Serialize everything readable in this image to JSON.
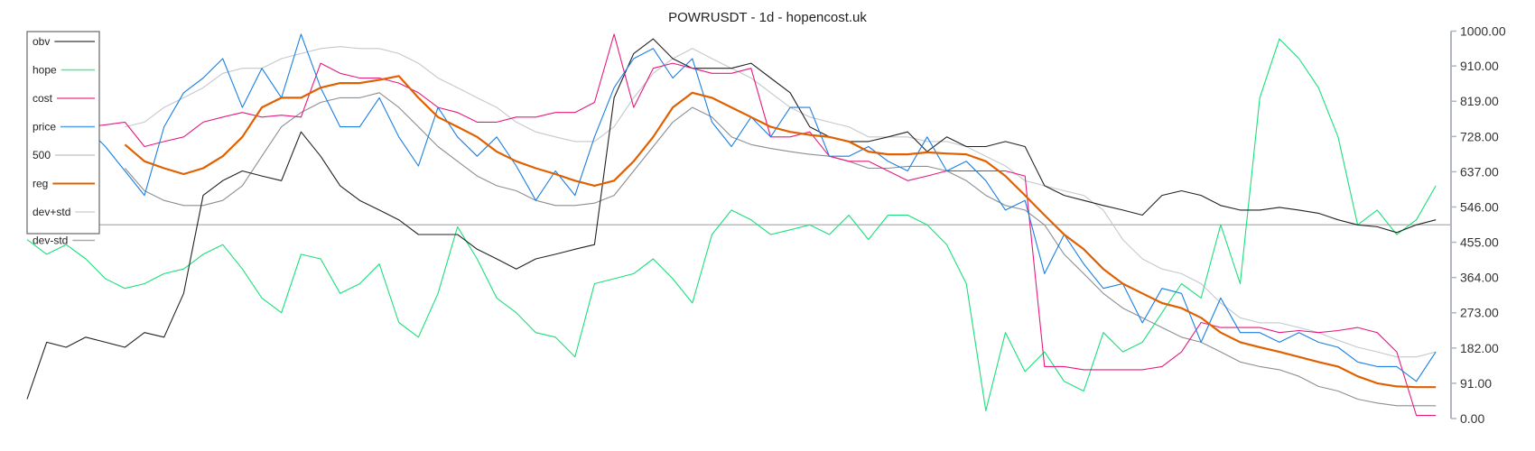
{
  "chart_data": {
    "type": "line",
    "title": "POWRUSDT - 1d - hopencost.uk",
    "ylim": [
      0,
      1000
    ],
    "y_ticks": [
      "0.00",
      "91.00",
      "182.00",
      "273.00",
      "364.00",
      "455.00",
      "546.00",
      "637.00",
      "728.00",
      "819.00",
      "910.00",
      "1000.00"
    ],
    "y_axis_side": "right",
    "grid": false,
    "legend_placement": "top-left",
    "x": "index 0-72 (no x labels shown)",
    "series": [
      {
        "name": "obv",
        "color": "#222222",
        "start": 0,
        "values": [
          50,
          197,
          184,
          210,
          197,
          184,
          222,
          210,
          323,
          576,
          614,
          639,
          626,
          614,
          740,
          677,
          601,
          563,
          538,
          513,
          475,
          475,
          475,
          437,
          412,
          386,
          412,
          424,
          437,
          449,
          828,
          942,
          980,
          929,
          904,
          904,
          904,
          917,
          879,
          841,
          753,
          727,
          715,
          715,
          727,
          740,
          689,
          727,
          702,
          702,
          715,
          702,
          601,
          576,
          563,
          550,
          538,
          525,
          576,
          588,
          576,
          550,
          538,
          538,
          545,
          538,
          530,
          513,
          500,
          495,
          480,
          500,
          513
        ]
      },
      {
        "name": "hope",
        "color": "#19e07a",
        "start": 0,
        "values": [
          462,
          424,
          449,
          412,
          361,
          336,
          348,
          374,
          386,
          424,
          449,
          386,
          311,
          273,
          424,
          412,
          323,
          348,
          399,
          248,
          210,
          323,
          495,
          412,
          311,
          273,
          222,
          210,
          159,
          348,
          361,
          374,
          412,
          361,
          298,
          475,
          538,
          513,
          475,
          487,
          500,
          475,
          525,
          462,
          525,
          525,
          500,
          449,
          348,
          20,
          222,
          121,
          172,
          96,
          71,
          222,
          172,
          197,
          273,
          348,
          311,
          500,
          348,
          828,
          980,
          929,
          854,
          727,
          500,
          538,
          475,
          513,
          601
        ]
      },
      {
        "name": "cost",
        "color": "#e8197d",
        "start": 3,
        "values": [
          753,
          758,
          765,
          702,
          715,
          727,
          765,
          778,
          790,
          778,
          783,
          778,
          917,
          891,
          879,
          879,
          866,
          841,
          803,
          790,
          765,
          765,
          778,
          778,
          790,
          790,
          816,
          992,
          803,
          904,
          917,
          904,
          891,
          891,
          904,
          727,
          727,
          740,
          677,
          664,
          664,
          639,
          614,
          626,
          639,
          639,
          639,
          639,
          626,
          134,
          134,
          126,
          126,
          126,
          126,
          134,
          172,
          248,
          235,
          235,
          235,
          222,
          227,
          222,
          227,
          235,
          222,
          172,
          8,
          8
        ]
      },
      {
        "name": "price",
        "color": "#1a7fe3",
        "start": 3,
        "values": [
          753,
          702,
          639,
          576,
          753,
          841,
          879,
          929,
          803,
          904,
          828,
          992,
          854,
          753,
          753,
          828,
          727,
          652,
          803,
          727,
          677,
          727,
          652,
          563,
          639,
          576,
          727,
          854,
          929,
          955,
          879,
          929,
          765,
          702,
          778,
          727,
          803,
          803,
          677,
          677,
          702,
          664,
          639,
          727,
          639,
          664,
          614,
          538,
          563,
          374,
          475,
          399,
          336,
          348,
          247,
          336,
          323,
          197,
          311,
          222,
          222,
          197,
          222,
          197,
          184,
          146,
          134,
          134,
          96,
          172
        ]
      },
      {
        "name": "500",
        "color": "#bbbbbb",
        "start": 0,
        "values": [
          500,
          500
        ]
      },
      {
        "name": "reg",
        "color": "#e06000",
        "start": 5,
        "values": [
          707,
          664,
          646,
          631,
          646,
          677,
          727,
          803,
          828,
          828,
          854,
          866,
          866,
          874,
          884,
          828,
          778,
          753,
          727,
          689,
          664,
          646,
          631,
          614,
          601,
          614,
          664,
          727,
          803,
          841,
          828,
          803,
          778,
          753,
          740,
          732,
          727,
          715,
          689,
          682,
          682,
          687,
          684,
          682,
          664,
          626,
          576,
          525,
          475,
          437,
          386,
          348,
          323,
          298,
          285,
          260,
          222,
          197,
          184,
          172,
          159,
          146,
          134,
          109,
          91,
          83,
          81,
          81
        ]
      },
      {
        "name": "dev+std",
        "color": "#c4c8cc",
        "start": 5,
        "values": [
          753,
          765,
          803,
          828,
          854,
          891,
          904,
          904,
          929,
          942,
          955,
          960,
          955,
          955,
          942,
          917,
          879,
          854,
          828,
          803,
          765,
          740,
          727,
          715,
          715,
          753,
          828,
          891,
          929,
          955,
          929,
          904,
          879,
          841,
          803,
          778,
          765,
          753,
          727,
          727,
          727,
          715,
          715,
          702,
          677,
          652,
          614,
          601,
          588,
          576,
          538,
          462,
          412,
          386,
          374,
          348,
          298,
          260,
          247,
          247,
          235,
          222,
          202,
          184,
          172,
          159,
          159,
          172
        ]
      },
      {
        "name": "dev-std",
        "color": "#8a8f94",
        "start": 5,
        "values": [
          646,
          588,
          563,
          550,
          550,
          563,
          601,
          677,
          753,
          790,
          816,
          828,
          828,
          841,
          803,
          753,
          702,
          664,
          626,
          601,
          588,
          563,
          550,
          550,
          556,
          576,
          639,
          702,
          765,
          803,
          778,
          727,
          707,
          697,
          689,
          682,
          677,
          664,
          646,
          646,
          651,
          651,
          639,
          614,
          576,
          550,
          538,
          500,
          424,
          374,
          323,
          285,
          260,
          235,
          210,
          197,
          172,
          146,
          134,
          126,
          109,
          83,
          71,
          50,
          40,
          33,
          33,
          33
        ]
      }
    ]
  }
}
